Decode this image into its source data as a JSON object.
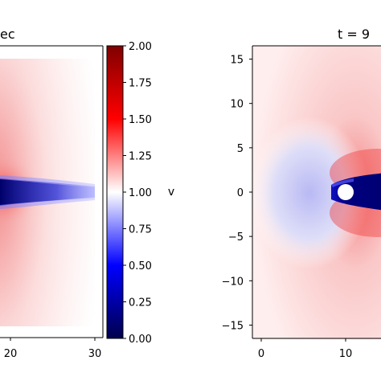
{
  "chart_data": [
    {
      "type": "heatmap",
      "title": "ec",
      "xlabel": "",
      "ylabel": "",
      "x_ticks": [
        20,
        30
      ],
      "y_ticks": [],
      "description": "velocity field, dark blue wake along y=0 behind obstacle"
    },
    {
      "type": "heatmap",
      "title": "t = 9",
      "xlabel": "",
      "ylabel": "",
      "x_ticks": [
        0,
        10
      ],
      "y_ticks": [
        15,
        10,
        5,
        0,
        -5,
        -10,
        -15
      ],
      "ylim": [
        -16.5,
        16.5
      ],
      "obstacle_center": [
        10,
        0
      ],
      "colormap": "seismic"
    }
  ],
  "colorbar": {
    "label": "v",
    "colormap": "seismic",
    "range": [
      0.0,
      2.0
    ],
    "tick_values": [
      0.0,
      0.25,
      0.5,
      0.75,
      1.0,
      1.25,
      1.5,
      1.75,
      2.0
    ],
    "tick_labels": [
      "0.00",
      "0.25",
      "0.50",
      "0.75",
      "1.00",
      "1.25",
      "1.50",
      "1.75",
      "2.00"
    ]
  },
  "colors": {
    "low": "#00004c",
    "mid": "#ffffff",
    "high": "#800000"
  }
}
